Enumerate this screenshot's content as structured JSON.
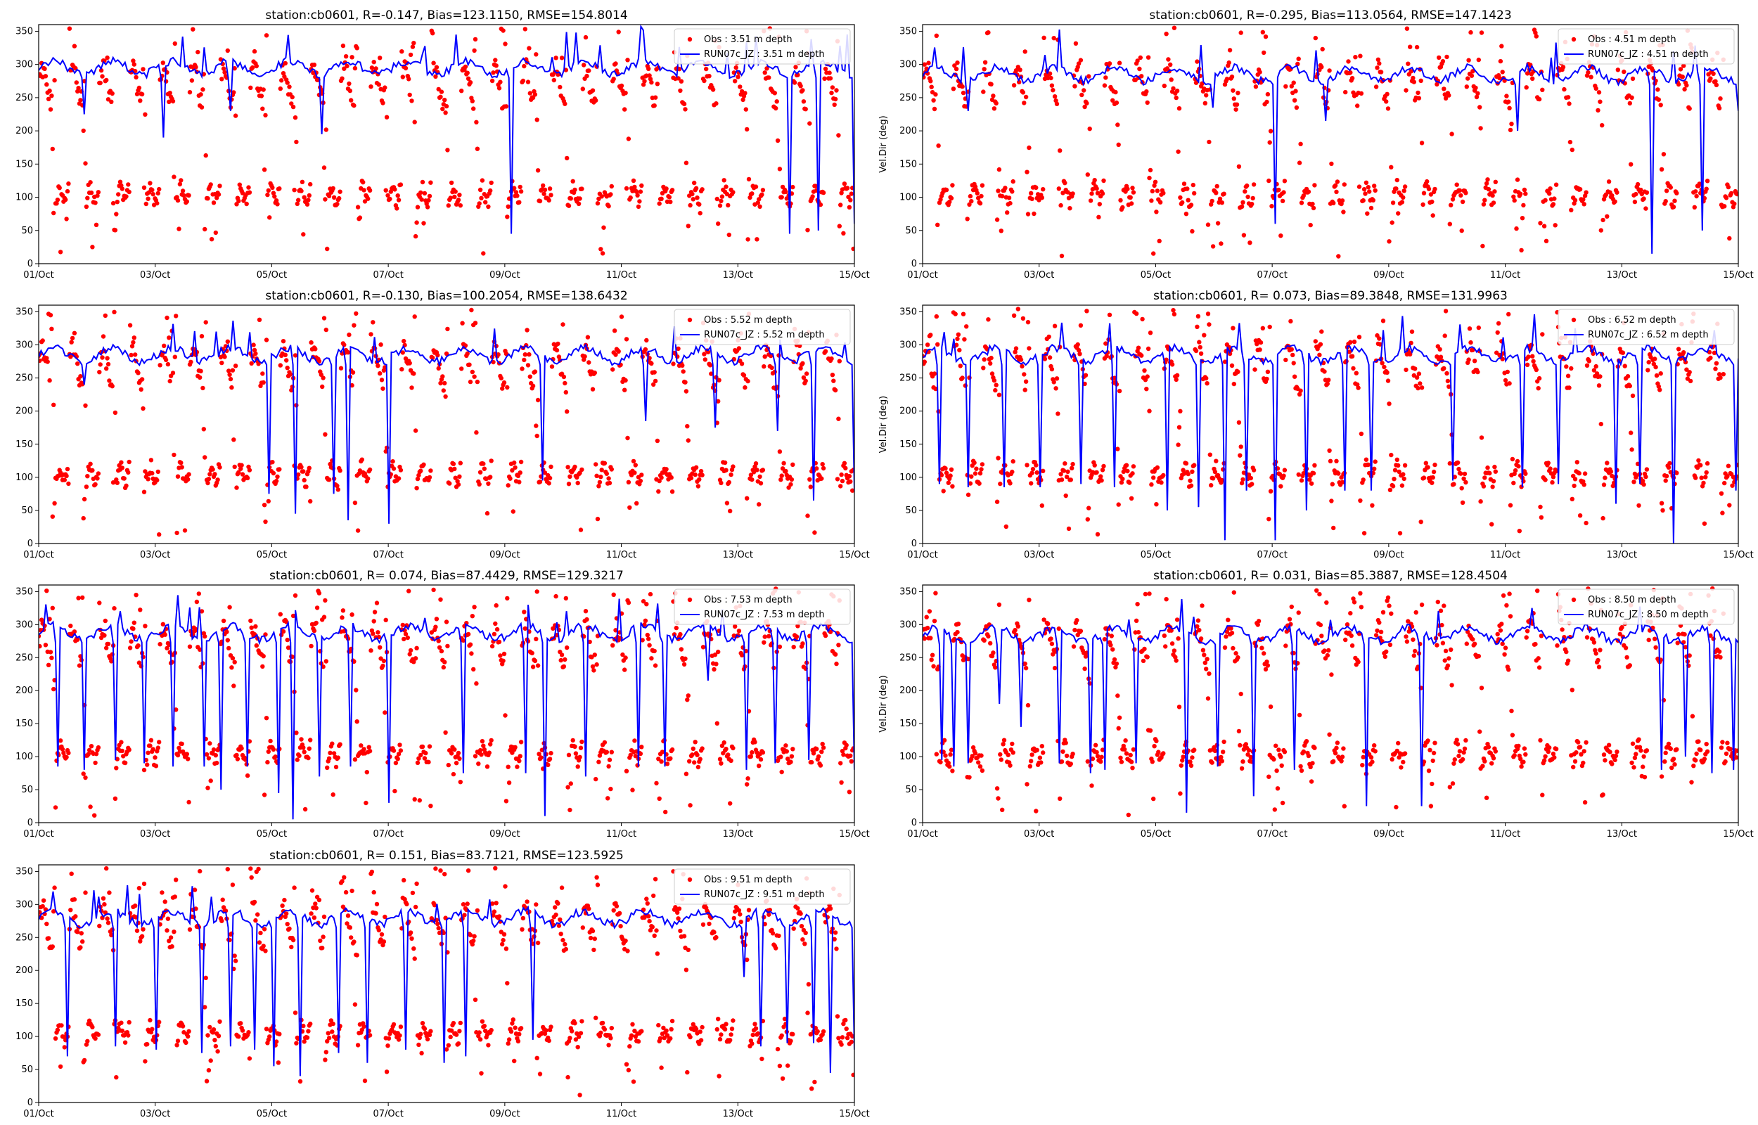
{
  "figure": {
    "xtick_labels": [
      "01/Oct",
      "03/Oct",
      "05/Oct",
      "07/Oct",
      "09/Oct",
      "11/Oct",
      "13/Oct",
      "15/Oct"
    ],
    "ytick_labels": [
      "0",
      "50",
      "100",
      "150",
      "200",
      "250",
      "300",
      "350"
    ],
    "ylabel": "Vel.Dir (deg)",
    "obs_color": "#ff0000",
    "model_color": "#0000ff"
  },
  "chart_data": [
    {
      "type": "scatter",
      "title": "station:cb0601, R=-0.147, Bias=123.1150, RMSE=154.8014",
      "ylabel": "",
      "xlim": [
        0,
        14
      ],
      "ylim": [
        0,
        360
      ],
      "legend_position": "upper right",
      "series": [
        {
          "name": "Obs : 3.51 m depth",
          "type": "scatter"
        },
        {
          "name": "RUN07c_JZ : 3.51 m depth",
          "type": "line"
        }
      ],
      "model_baseline": 295,
      "model_dips": [
        0.8,
        2.15,
        3.3,
        4.85,
        8.1,
        12.9,
        13.4,
        14.5
      ],
      "model_dip_depths": [
        225,
        190,
        230,
        195,
        45,
        45,
        50,
        60
      ]
    },
    {
      "type": "scatter",
      "title": "station:cb0601, R=-0.295, Bias=113.0564, RMSE=147.1423",
      "ylabel": "Vel.Dir (deg)",
      "xlim": [
        0,
        14
      ],
      "ylim": [
        0,
        360
      ],
      "legend_position": "upper right",
      "series": [
        {
          "name": "Obs : 4.51 m depth",
          "type": "scatter"
        },
        {
          "name": "RUN07c_JZ : 4.51 m depth",
          "type": "line"
        }
      ],
      "model_baseline": 285,
      "model_dips": [
        0.8,
        5.0,
        6.05,
        6.9,
        10.2,
        12.5,
        13.4,
        14.5
      ],
      "model_dip_depths": [
        230,
        235,
        60,
        215,
        200,
        15,
        50,
        230
      ]
    },
    {
      "type": "scatter",
      "title": "station:cb0601, R=-0.130, Bias=100.2054, RMSE=138.6432",
      "ylabel": "",
      "xlim": [
        0,
        14
      ],
      "ylim": [
        0,
        360
      ],
      "legend_position": "upper right",
      "series": [
        {
          "name": "Obs : 5.52 m depth",
          "type": "scatter"
        },
        {
          "name": "RUN07c_JZ : 5.52 m depth",
          "type": "line"
        }
      ],
      "model_baseline": 285,
      "model_dips": [
        0.8,
        3.95,
        4.4,
        5.05,
        5.3,
        6.0,
        8.65,
        10.4,
        11.6,
        12.7,
        13.3,
        14.4
      ],
      "model_dip_depths": [
        240,
        75,
        45,
        75,
        35,
        30,
        95,
        185,
        175,
        170,
        65,
        80
      ]
    },
    {
      "type": "scatter",
      "title": "station:cb0601, R= 0.073, Bias=89.3848, RMSE=131.9963",
      "ylabel": "Vel.Dir (deg)",
      "xlim": [
        0,
        14
      ],
      "ylim": [
        0,
        360
      ],
      "legend_position": "upper right",
      "series": [
        {
          "name": "Obs : 6.52 m depth",
          "type": "scatter"
        },
        {
          "name": "RUN07c_JZ : 6.52 m depth",
          "type": "line"
        }
      ],
      "model_baseline": 285,
      "model_dips": [
        0.3,
        0.8,
        1.4,
        2.0,
        2.7,
        3.3,
        4.2,
        4.75,
        5.2,
        5.55,
        6.05,
        6.6,
        7.25,
        7.7,
        9.1,
        10.3,
        10.9,
        11.9,
        12.3,
        12.9,
        13.95
      ],
      "model_dip_depths": [
        90,
        85,
        85,
        85,
        90,
        85,
        50,
        55,
        5,
        80,
        5,
        50,
        80,
        80,
        95,
        85,
        90,
        60,
        90,
        0,
        80
      ]
    },
    {
      "type": "scatter",
      "title": "station:cb0601, R= 0.074, Bias=87.4429, RMSE=129.3217",
      "ylabel": "",
      "xlim": [
        0,
        14
      ],
      "ylim": [
        0,
        360
      ],
      "legend_position": "upper right",
      "series": [
        {
          "name": "Obs : 7.53 m depth",
          "type": "scatter"
        },
        {
          "name": "RUN07c_JZ : 7.53 m depth",
          "type": "line"
        }
      ],
      "model_baseline": 288,
      "model_dips": [
        0.35,
        0.8,
        1.3,
        1.8,
        2.3,
        2.85,
        3.15,
        3.6,
        4.1,
        4.35,
        4.8,
        5.35,
        6.0,
        7.3,
        8.35,
        8.7,
        9.4,
        10.3,
        10.75,
        11.5,
        12.15,
        12.65,
        13.2,
        14.0,
        14.45
      ],
      "model_dip_depths": [
        85,
        80,
        95,
        90,
        85,
        85,
        50,
        85,
        45,
        5,
        70,
        85,
        30,
        75,
        75,
        10,
        70,
        85,
        85,
        215,
        80,
        90,
        95,
        90,
        80
      ]
    },
    {
      "type": "scatter",
      "title": "station:cb0601, R= 0.031, Bias=85.3887, RMSE=128.4504",
      "ylabel": "Vel.Dir (deg)",
      "xlim": [
        0,
        14
      ],
      "ylim": [
        0,
        360
      ],
      "legend_position": "upper right",
      "series": [
        {
          "name": "Obs : 8.50 m depth",
          "type": "scatter"
        },
        {
          "name": "RUN07c_JZ : 8.50 m depth",
          "type": "line"
        }
      ],
      "model_baseline": 285,
      "model_dips": [
        0.35,
        0.55,
        0.8,
        1.3,
        1.7,
        2.35,
        2.9,
        3.15,
        3.65,
        4.55,
        5.05,
        5.7,
        6.4,
        7.6,
        8.55,
        12.7,
        13.1,
        13.55,
        13.9
      ],
      "model_dip_depths": [
        95,
        85,
        90,
        180,
        145,
        90,
        75,
        80,
        90,
        15,
        85,
        40,
        80,
        25,
        25,
        80,
        100,
        75,
        80
      ]
    },
    {
      "type": "scatter",
      "title": "station:cb0601, R= 0.151, Bias=83.7121, RMSE=123.5925",
      "ylabel": "",
      "xlim": [
        0,
        14
      ],
      "ylim": [
        0,
        360
      ],
      "legend_position": "upper right",
      "series": [
        {
          "name": "Obs : 9.51 m depth",
          "type": "scatter"
        },
        {
          "name": "RUN07c_JZ : 9.51 m depth",
          "type": "line"
        }
      ],
      "model_baseline": 280,
      "model_dips": [
        0.5,
        1.3,
        2.0,
        2.8,
        3.3,
        3.7,
        4.05,
        4.5,
        5.15,
        5.65,
        6.3,
        6.95,
        7.35,
        8.5,
        12.1,
        12.4,
        12.85,
        13.3,
        13.6,
        14.1
      ],
      "model_dip_depths": [
        70,
        85,
        80,
        75,
        85,
        80,
        55,
        40,
        75,
        60,
        80,
        60,
        70,
        95,
        190,
        85,
        90,
        90,
        45,
        80
      ]
    }
  ]
}
